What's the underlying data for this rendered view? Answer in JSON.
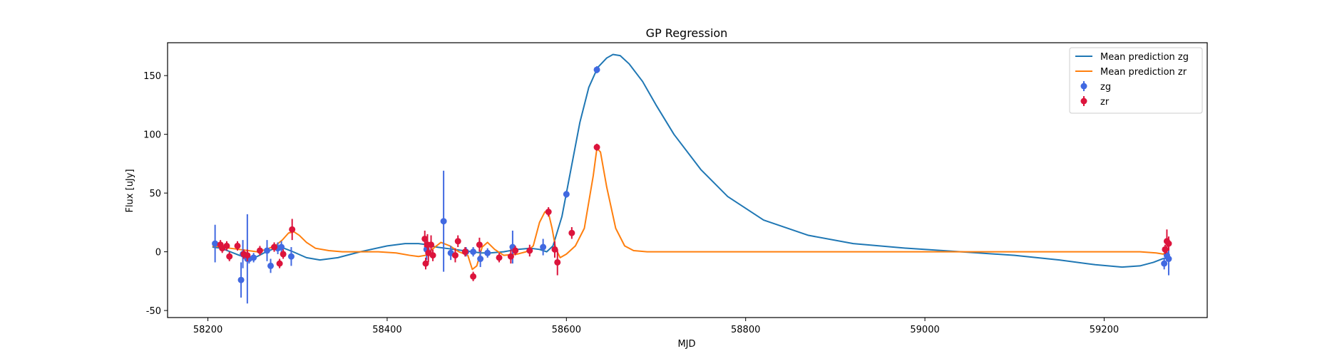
{
  "chart_data": {
    "type": "scatter",
    "title": "GP Regression",
    "xlabel": "MJD",
    "ylabel": "Flux [uJy]",
    "xlim": [
      58155,
      59315
    ],
    "ylim": [
      -56,
      178
    ],
    "xticks": [
      58200,
      58400,
      58600,
      58800,
      59000,
      59200
    ],
    "yticks": [
      -50,
      0,
      50,
      100,
      150
    ],
    "grid": false,
    "legend_position": "top-right",
    "series": [
      {
        "name": "Mean prediction zg",
        "kind": "line",
        "color": "#1f77b4",
        "x": [
          58205,
          58215,
          58225,
          58235,
          58245,
          58255,
          58265,
          58275,
          58285,
          58295,
          58310,
          58325,
          58345,
          58370,
          58400,
          58420,
          58435,
          58445,
          58455,
          58465,
          58475,
          58485,
          58495,
          58505,
          58515,
          58530,
          58545,
          58560,
          58570,
          58578,
          58585,
          58595,
          58605,
          58615,
          58625,
          58635,
          58645,
          58652,
          58660,
          58670,
          58685,
          58700,
          58720,
          58750,
          58780,
          58820,
          58870,
          58920,
          58980,
          59040,
          59100,
          59150,
          59190,
          59220,
          59240,
          59255,
          59265,
          59272
        ],
        "y": [
          4,
          3,
          0,
          -3,
          -5,
          -4,
          0,
          3,
          3,
          0,
          -5,
          -7,
          -5,
          0,
          5,
          7,
          7,
          6,
          4,
          3,
          2,
          1,
          0,
          -1,
          -1,
          0,
          2,
          3,
          2,
          0,
          5,
          30,
          70,
          110,
          140,
          157,
          165,
          168,
          167,
          160,
          145,
          125,
          100,
          70,
          47,
          27,
          14,
          7,
          3,
          0,
          -3,
          -7,
          -11,
          -13,
          -12,
          -9,
          -6,
          -5
        ]
      },
      {
        "name": "Mean prediction zr",
        "kind": "line",
        "color": "#ff7f0e",
        "x": [
          58205,
          58215,
          58225,
          58235,
          58245,
          58255,
          58265,
          58275,
          58283,
          58290,
          58296,
          58302,
          58310,
          58320,
          58335,
          58350,
          58370,
          58390,
          58410,
          58425,
          58435,
          58443,
          58450,
          58460,
          58470,
          58480,
          58490,
          58495,
          58500,
          58506,
          58512,
          58520,
          58530,
          58545,
          58555,
          58563,
          58570,
          58576,
          58580,
          58584,
          58588,
          58593,
          58600,
          58610,
          58620,
          58630,
          58634,
          58638,
          58645,
          58655,
          58665,
          58675,
          58690,
          58710,
          58750,
          58800,
          58900,
          59000,
          59100,
          59200,
          59240,
          59258,
          59266,
          59272
        ],
        "y": [
          5,
          4,
          3,
          2,
          1,
          0,
          2,
          5,
          10,
          16,
          17,
          14,
          8,
          3,
          1,
          0,
          0,
          0,
          -1,
          -3,
          -4,
          -3,
          2,
          8,
          5,
          0,
          -3,
          -15,
          -12,
          4,
          8,
          2,
          -3,
          -2,
          0,
          5,
          25,
          34,
          33,
          20,
          3,
          -5,
          -2,
          5,
          20,
          65,
          88,
          85,
          55,
          20,
          5,
          1,
          0,
          0,
          0,
          0,
          0,
          0,
          0,
          0,
          0,
          -1,
          -2,
          2
        ]
      },
      {
        "name": "zg",
        "kind": "errorbar",
        "color": "#4169e1",
        "points": [
          [
            58208,
            7,
            16
          ],
          [
            58237,
            -24,
            15
          ],
          [
            58239,
            -2,
            12
          ],
          [
            58244,
            -6,
            38
          ],
          [
            58246,
            -6,
            4
          ],
          [
            58251,
            -5,
            4
          ],
          [
            58266,
            1,
            9
          ],
          [
            58270,
            -12,
            6
          ],
          [
            58278,
            3,
            5
          ],
          [
            58282,
            4,
            5
          ],
          [
            58293,
            -4,
            8
          ],
          [
            58444,
            2,
            9
          ],
          [
            58463,
            26,
            43
          ],
          [
            58471,
            -1,
            6
          ],
          [
            58488,
            0,
            4
          ],
          [
            58496,
            0,
            4
          ],
          [
            58504,
            -6,
            7
          ],
          [
            58512,
            -1,
            4
          ],
          [
            58540,
            4,
            14
          ],
          [
            58574,
            4,
            7
          ],
          [
            58600,
            49,
            3
          ],
          [
            58634,
            155,
            3
          ],
          [
            59267,
            -10,
            5
          ],
          [
            59270,
            -3,
            5
          ],
          [
            59272,
            -6,
            14
          ]
        ]
      },
      {
        "name": "zr",
        "kind": "errorbar",
        "color": "#dc143c",
        "points": [
          [
            58214,
            6,
            4
          ],
          [
            58216,
            3,
            4
          ],
          [
            58221,
            5,
            4
          ],
          [
            58224,
            -4,
            4
          ],
          [
            58233,
            5,
            4
          ],
          [
            58240,
            -2,
            4
          ],
          [
            58244,
            -3,
            5
          ],
          [
            58258,
            1,
            4
          ],
          [
            58274,
            4,
            4
          ],
          [
            58280,
            -10,
            4
          ],
          [
            58284,
            -2,
            4
          ],
          [
            58294,
            19,
            9
          ],
          [
            58442,
            11,
            7
          ],
          [
            58443,
            -10,
            5
          ],
          [
            58445,
            6,
            9
          ],
          [
            58446,
            -1,
            8
          ],
          [
            58449,
            6,
            8
          ],
          [
            58451,
            -3,
            5
          ],
          [
            58476,
            -3,
            6
          ],
          [
            58479,
            9,
            5
          ],
          [
            58487,
            0,
            4
          ],
          [
            58496,
            -21,
            4
          ],
          [
            58503,
            6,
            6
          ],
          [
            58525,
            -5,
            4
          ],
          [
            58538,
            -4,
            6
          ],
          [
            58543,
            1,
            4
          ],
          [
            58559,
            1,
            5
          ],
          [
            58580,
            34,
            4
          ],
          [
            58587,
            2,
            7
          ],
          [
            58590,
            -9,
            11
          ],
          [
            58606,
            16,
            5
          ],
          [
            58634,
            89,
            3
          ],
          [
            59268,
            2,
            4
          ],
          [
            59270,
            9,
            10
          ],
          [
            59272,
            7,
            6
          ]
        ]
      }
    ]
  }
}
